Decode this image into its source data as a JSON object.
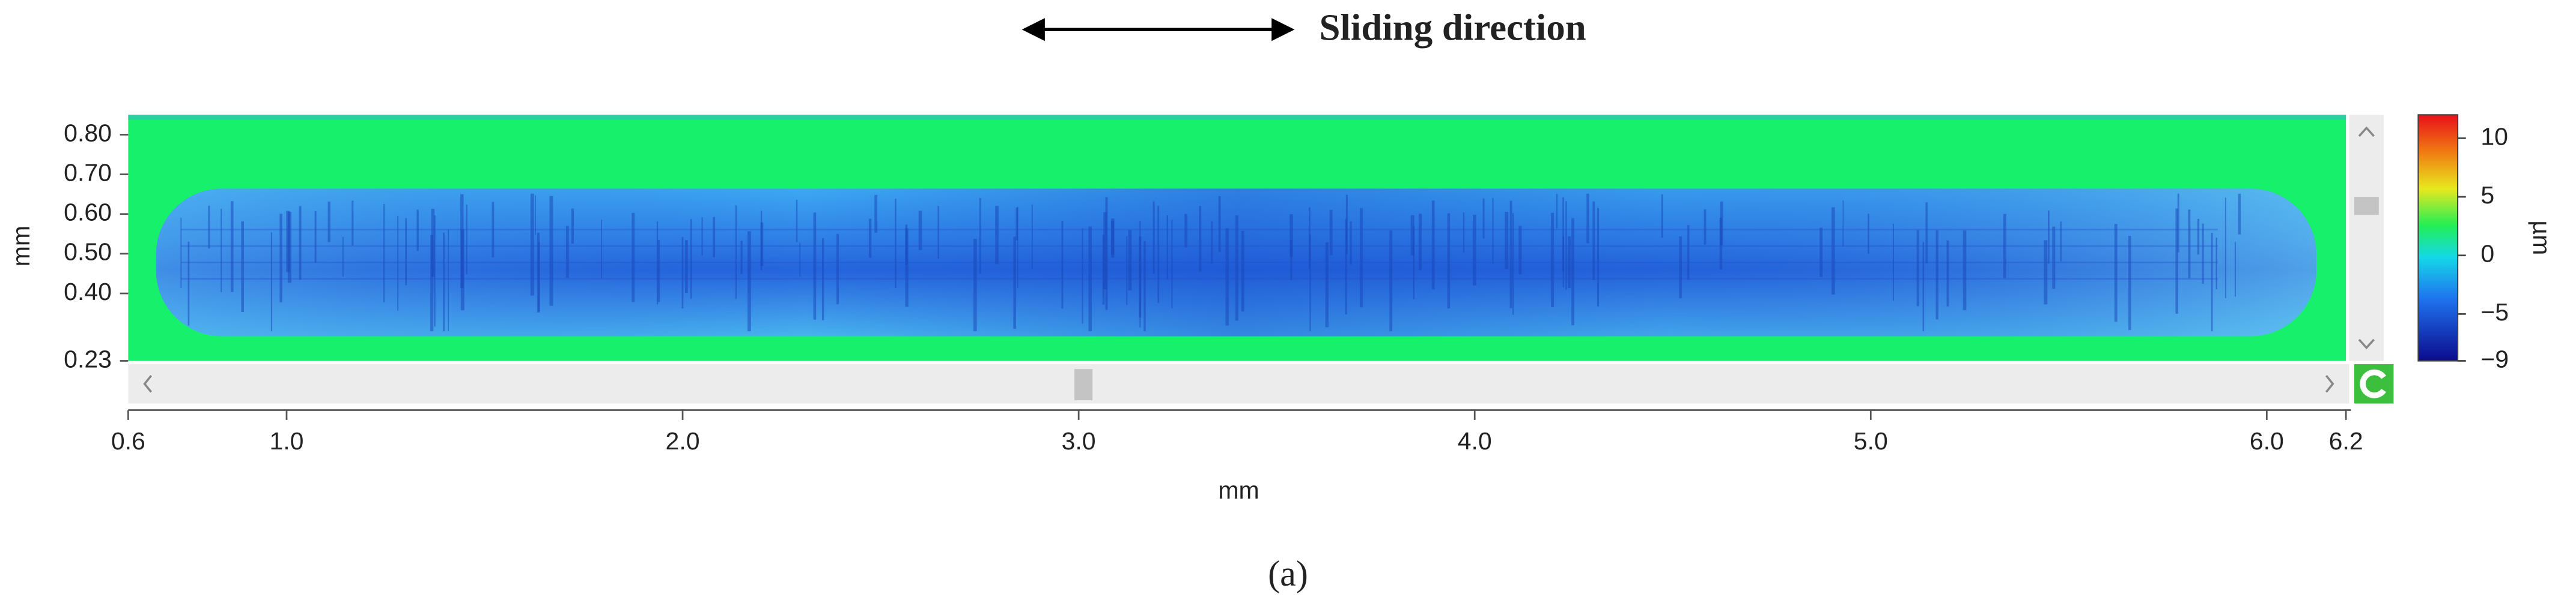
{
  "chart_data": {
    "type": "heatmap",
    "annotation": "Sliding direction",
    "caption": "(a)",
    "xlabel": "mm",
    "ylabel": "mm",
    "colorbar_label": "µm",
    "xlim": [
      0.6,
      6.2
    ],
    "xticks": [
      0.6,
      {
        "value": 1,
        "label": "1.0"
      },
      {
        "value": 2,
        "label": "2.0"
      },
      {
        "value": 3,
        "label": "3.0"
      },
      {
        "value": 4,
        "label": "4.0"
      },
      {
        "value": 5,
        "label": "5.0"
      },
      {
        "value": 6,
        "label": "6.0"
      },
      6.2
    ],
    "ylim": [
      0.23,
      0.85
    ],
    "yticks": [
      0.23,
      {
        "value": 0.4,
        "label": "0.40"
      },
      {
        "value": 0.5,
        "label": "0.50"
      },
      {
        "value": 0.6,
        "label": "0.60"
      },
      {
        "value": 0.7,
        "label": "0.70"
      },
      {
        "value": 0.8,
        "label": "0.80"
      }
    ],
    "zlim": [
      -9,
      12
    ],
    "zticks": [
      {
        "value": -9,
        "label": "−9"
      },
      {
        "value": -5,
        "label": "−5"
      },
      0,
      5,
      10
    ]
  }
}
